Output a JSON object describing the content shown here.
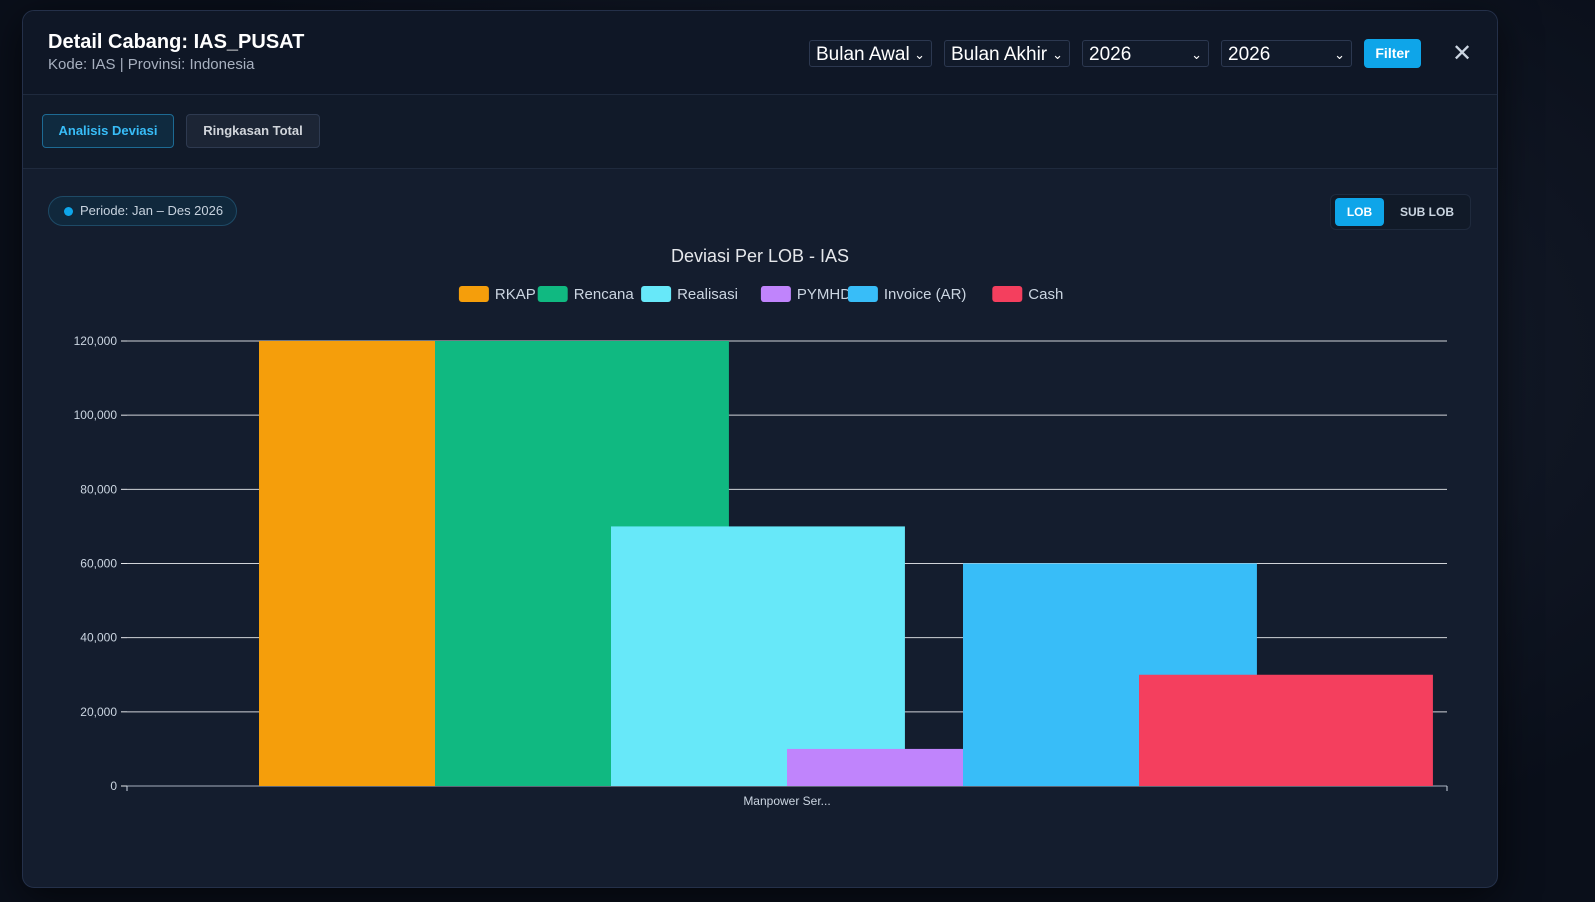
{
  "modal": {
    "title": "Detail Cabang: IAS_PUSAT",
    "subtitle": "Kode: IAS | Provinsi: Indonesia",
    "filters": {
      "start_month": "Bulan Awal",
      "end_month": "Bulan Akhir",
      "start_year": "2026",
      "end_year": "2026",
      "filter_label": "Filter"
    },
    "close_label": "✕"
  },
  "tabs": [
    {
      "label": "Analisis Deviasi",
      "active": true
    },
    {
      "label": "Ringkasan Total",
      "active": false
    }
  ],
  "period_label": "Periode: Jan – Des 2026",
  "view_toggle": {
    "lob": "LOB",
    "sub_lob": "SUB LOB",
    "selected": "LOB"
  },
  "chart_data": {
    "type": "bar",
    "title": "Deviasi Per LOB - IAS",
    "categories": [
      "Manpower Ser..."
    ],
    "series": [
      {
        "name": "RKAP",
        "values": [
          120000
        ],
        "color": "#f59e0b"
      },
      {
        "name": "Rencana",
        "values": [
          120000
        ],
        "color": "#10b981"
      },
      {
        "name": "Realisasi",
        "values": [
          70000
        ],
        "color": "#67e8f9"
      },
      {
        "name": "PYMHD",
        "values": [
          10000
        ],
        "color": "#c084fc"
      },
      {
        "name": "Invoice (AR)",
        "values": [
          60000
        ],
        "color": "#38bdf8"
      },
      {
        "name": "Cash",
        "values": [
          30000
        ],
        "color": "#f43f5e"
      }
    ],
    "ylim": [
      0,
      120000
    ],
    "yticks": [
      "0",
      "20,000",
      "40,000",
      "60,000",
      "80,000",
      "100,000",
      "120,000"
    ],
    "ytick_values": [
      0,
      20000,
      40000,
      60000,
      80000,
      100000,
      120000
    ],
    "grid": true,
    "legend_position": "top"
  }
}
